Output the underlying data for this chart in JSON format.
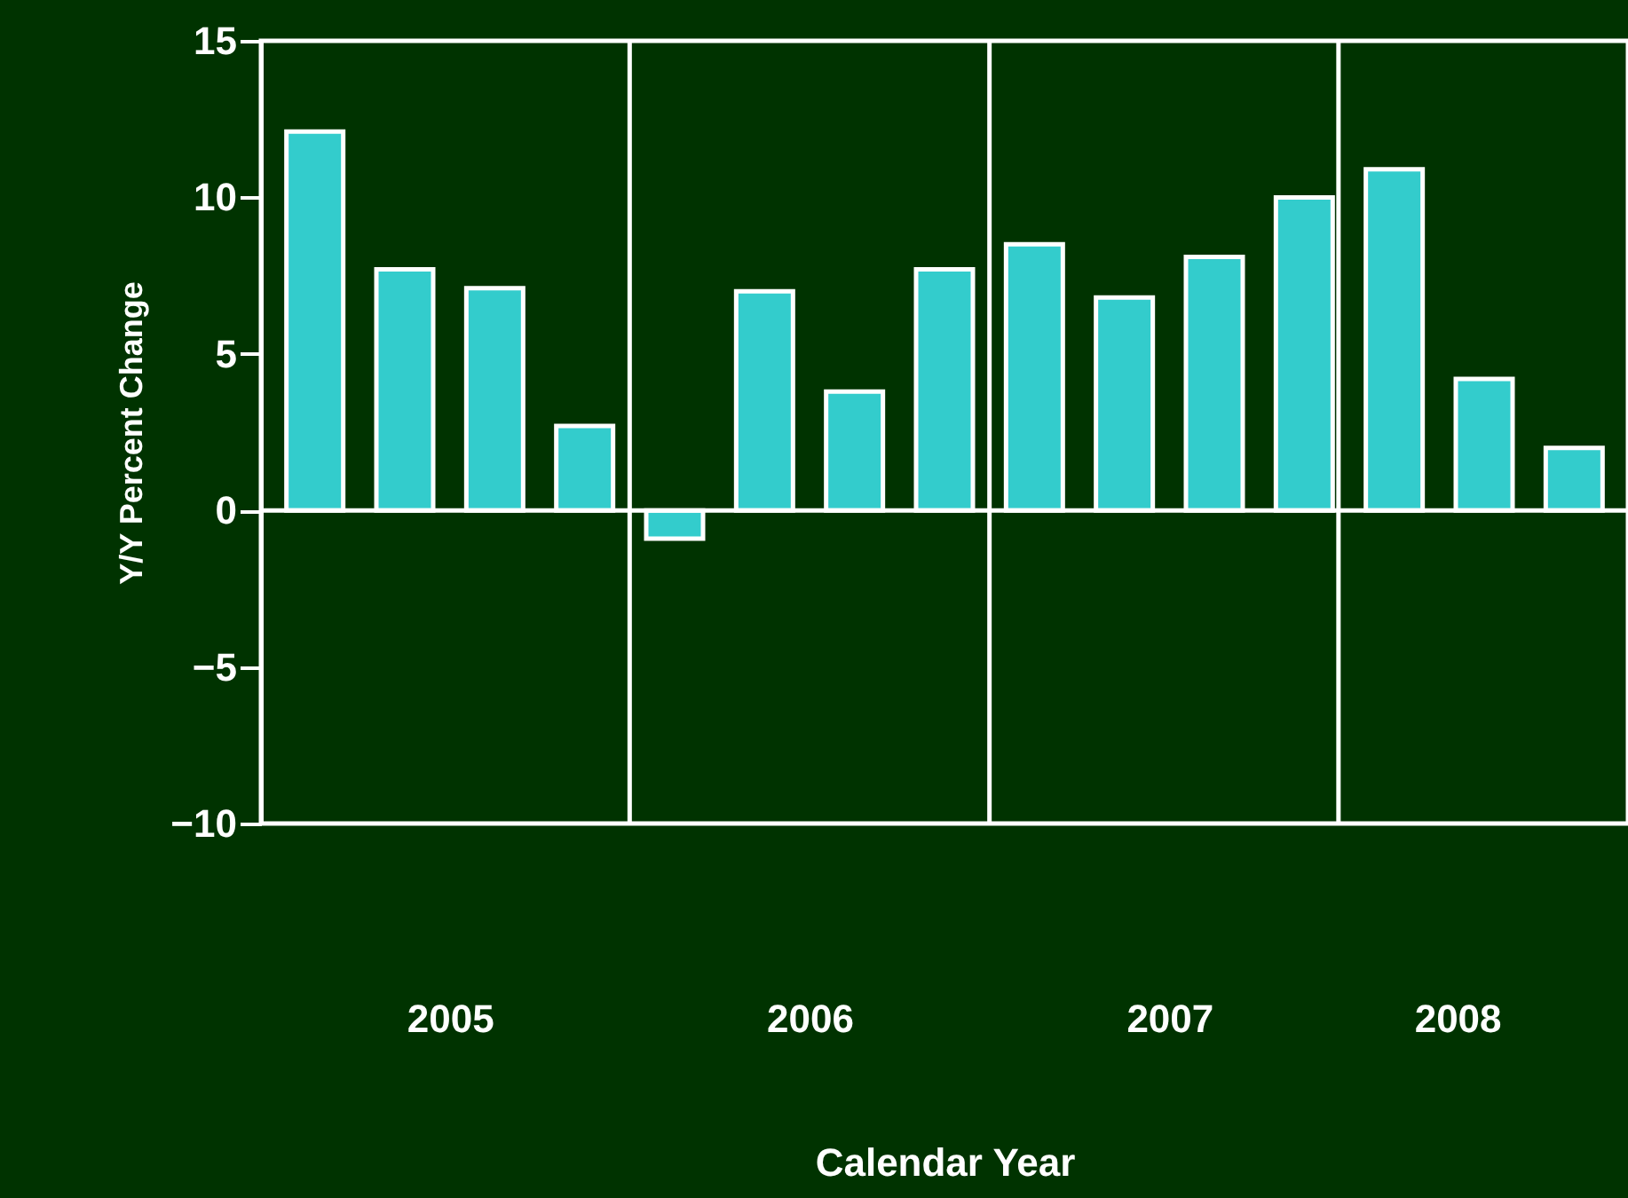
{
  "chart_data": {
    "type": "bar",
    "xlabel": "Calendar Year",
    "ylabel": "Y/Y Percent Change",
    "x": [
      2005.125,
      2005.375,
      2005.625,
      2005.875,
      2006.125,
      2006.375,
      2006.625,
      2006.875,
      2007.125,
      2007.375,
      2007.625,
      2007.875,
      2008.125,
      2008.375,
      2008.625
    ],
    "series": [
      {
        "color": "#33cccc",
        "values": [
          12.1,
          7.7,
          7.1,
          2.7,
          -0.9,
          7.0,
          3.8,
          7.7,
          8.5,
          6.8,
          8.1,
          10.0,
          10.9,
          4.2,
          2.0
        ]
      }
    ],
    "xlim": [
      2005,
      2008.75
    ],
    "xticks": [
      {
        "value": 2005.5,
        "label": "2005"
      },
      {
        "value": 2006.5,
        "label": "2006"
      },
      {
        "value": 2007.5,
        "label": "2007"
      },
      {
        "value": 2008.3,
        "label": "2008"
      }
    ],
    "ylim": [
      -10,
      15
    ],
    "yticks": [
      -10,
      -5,
      0,
      5,
      10,
      15
    ],
    "ref_lines": [
      {
        "axis": "x",
        "value": 2006,
        "color": "#ffffff"
      },
      {
        "axis": "x",
        "value": 2007,
        "color": "#ffffff"
      },
      {
        "axis": "x",
        "value": 2007.97,
        "color": "#ffffff"
      },
      {
        "axis": "y",
        "value": 0,
        "color": "#ffffff"
      }
    ],
    "grid": false
  }
}
